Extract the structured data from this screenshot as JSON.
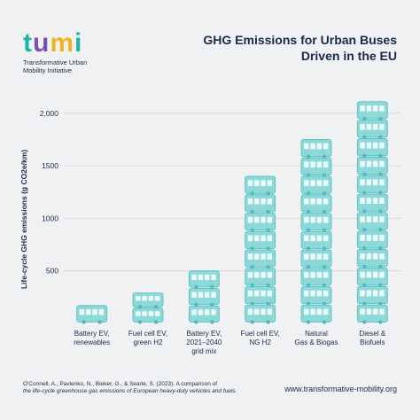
{
  "logo": {
    "letters": [
      "t",
      "u",
      "m",
      "i"
    ],
    "subtitle_line1": "Transformative Urban",
    "subtitle_line2": "Mobility Initiative"
  },
  "title_line1": "GHG Emissions for Urban Buses",
  "title_line2": "Driven in the EU",
  "citation_line1": "O'Connell, A., Pavlenko, N., Bieker, G., & Searle, S. (2023). A comparison of",
  "citation_line2": "the life-cycle greenhouse gas emissions of European heavy-duty vehicles and fuels.",
  "website": "www.transformative-mobility.org",
  "colors": {
    "bus": "#8fd8d8",
    "bus_dark": "#4fbcc0",
    "text": "#1a2a4a",
    "grid": "#d4d6da",
    "background": "#f0f1f2"
  },
  "chart_data": {
    "type": "bar",
    "title": "GHG Emissions for Urban Buses Driven in the EU",
    "ylabel": "Life-cycle GHG emissions (g CO2e/km)",
    "xlabel": "",
    "ylim": [
      0,
      2150
    ],
    "yticks": [
      500,
      1000,
      1500,
      2000
    ],
    "ytick_labels": [
      "500",
      "1000",
      "1500",
      "2,000"
    ],
    "grid": true,
    "categories": [
      [
        "Battery EV,",
        "renewables"
      ],
      [
        "Fuel cell EV,",
        "green H2"
      ],
      [
        "Battery EV,",
        "2021–2040",
        "grid mix"
      ],
      [
        "Fuel cell EV,",
        "NG H2"
      ],
      [
        "Natural",
        "Gas & Biogas"
      ],
      [
        "Diesel &",
        "Biofuels"
      ]
    ],
    "values": [
      170,
      290,
      500,
      1400,
      1750,
      2110
    ],
    "unit_per_icon": 180
  }
}
